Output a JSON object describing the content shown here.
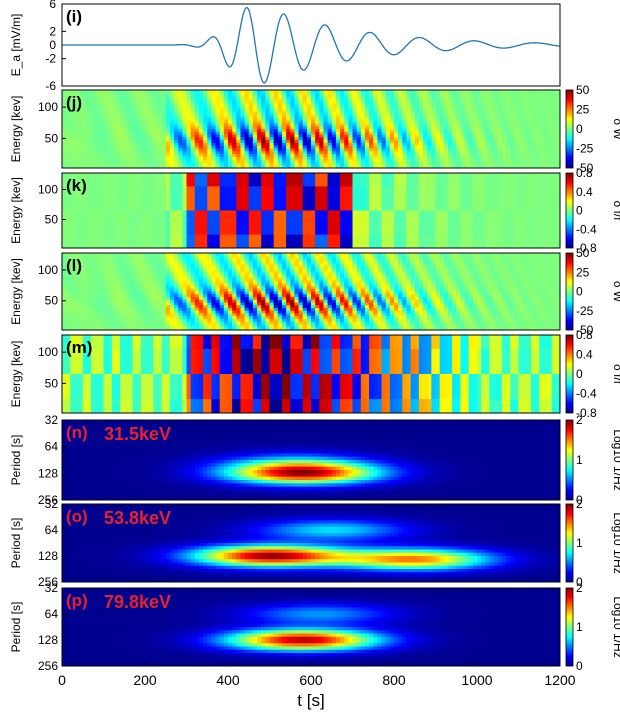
{
  "chart_data": {
    "x_range": [
      0,
      1200
    ],
    "x_ticks": [
      "0",
      "200",
      "400",
      "600",
      "800",
      "1000",
      "1200"
    ],
    "xlabel": "t [s]",
    "panels": [
      {
        "type": "line",
        "label": "(i)",
        "ylabel": "E_a [mV/m]",
        "ylim": [
          -6,
          6
        ],
        "y_ticks": [
          "6",
          "2",
          "-2",
          "-6"
        ],
        "y_tick_values": [
          6,
          2,
          -2,
          -6
        ],
        "y_zero_tick": "0",
        "color": "#1f77b4",
        "series_points": [
          [
            0,
            0
          ],
          [
            150,
            0
          ],
          [
            250,
            0.05
          ],
          [
            280,
            -0.4
          ],
          [
            320,
            -2.6
          ],
          [
            360,
            4.6
          ],
          [
            400,
            -5.8
          ],
          [
            440,
            6.2
          ],
          [
            480,
            -4.6
          ],
          [
            520,
            4.9
          ],
          [
            560,
            -3.4
          ],
          [
            600,
            4.2
          ],
          [
            650,
            -2.4
          ],
          [
            700,
            3.0
          ],
          [
            760,
            -1.6
          ],
          [
            800,
            2.0
          ],
          [
            870,
            -1.0
          ],
          [
            920,
            0.8
          ],
          [
            990,
            -0.35
          ],
          [
            1050,
            0.15
          ],
          [
            1100,
            0
          ],
          [
            1200,
            0
          ]
        ]
      },
      {
        "type": "heatmap",
        "label": "(j)",
        "ylabel": "Energy [kev]",
        "y_ticks": [
          "100",
          "50"
        ],
        "colorbar_ticks": [
          "50",
          "25",
          "0",
          "-25",
          "-50"
        ],
        "colorbar_label": "δ W",
        "pattern": "chirp"
      },
      {
        "type": "heatmap",
        "label": "(k)",
        "ylabel": "Energy [kev]",
        "y_ticks": [
          "100",
          "50"
        ],
        "colorbar_ticks": [
          "0.8",
          "0.4",
          "0",
          "-0.4",
          "-0.8"
        ],
        "colorbar_label": "δ f/f",
        "pattern": "checker-short"
      },
      {
        "type": "heatmap",
        "label": "(l)",
        "ylabel": "Energy [kev]",
        "y_ticks": [
          "100",
          "50"
        ],
        "colorbar_ticks": [
          "50",
          "25",
          "0",
          "-25",
          "-50"
        ],
        "colorbar_label": "δ W",
        "pattern": "spiral"
      },
      {
        "type": "heatmap",
        "label": "(m)",
        "ylabel": "Energy [kev]",
        "y_ticks": [
          "100",
          "50"
        ],
        "colorbar_ticks": [
          "0.8",
          "0.4",
          "0",
          "-0.4",
          "-0.8"
        ],
        "colorbar_label": "δ f/f",
        "pattern": "checker-long"
      },
      {
        "type": "heatmap",
        "label": "(n)",
        "title": "31.5keV",
        "ylabel": "Period [s]",
        "y_ticks": [
          "32",
          "64",
          "128",
          "256"
        ],
        "colorbar_ticks": [
          "2",
          "1",
          "0"
        ],
        "colorbar_label": "Log10 1/Hz",
        "pattern": "spectrum",
        "blobs": [
          {
            "t": 580,
            "period": 128,
            "strength": 1.85
          },
          {
            "t": 560,
            "period": 96,
            "strength": 0.45
          }
        ]
      },
      {
        "type": "heatmap",
        "label": "(o)",
        "title": "53.8keV",
        "ylabel": "Period [s]",
        "y_ticks": [
          "32",
          "64",
          "128",
          "256"
        ],
        "colorbar_ticks": [
          "2",
          "1",
          "0"
        ],
        "colorbar_label": "Log10 1/Hz",
        "pattern": "spectrum",
        "blobs": [
          {
            "t": 500,
            "period": 128,
            "strength": 1.95
          },
          {
            "t": 850,
            "period": 140,
            "strength": 1.5
          },
          {
            "t": 650,
            "period": 64,
            "strength": 0.7
          }
        ]
      },
      {
        "type": "heatmap",
        "label": "(p)",
        "title": "79.8keV",
        "ylabel": "Period [s]",
        "y_ticks": [
          "32",
          "64",
          "128",
          "256"
        ],
        "colorbar_ticks": [
          "2",
          "1",
          "0"
        ],
        "colorbar_label": "Log10 1/Hz",
        "pattern": "spectrum",
        "blobs": [
          {
            "t": 580,
            "period": 128,
            "strength": 1.9
          },
          {
            "t": 620,
            "period": 64,
            "strength": 0.55
          }
        ]
      }
    ]
  }
}
